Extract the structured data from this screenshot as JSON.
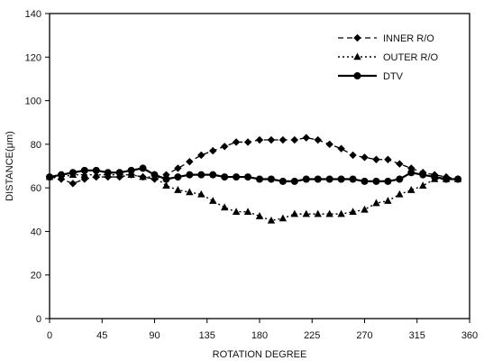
{
  "chart_data": {
    "type": "line",
    "title": "",
    "xlabel": "ROTATION DEGREE",
    "ylabel": "DISTANCE(μm)",
    "xlim": [
      0,
      360
    ],
    "ylim": [
      0,
      140
    ],
    "xticks": [
      0,
      45,
      90,
      135,
      180,
      225,
      270,
      315,
      360
    ],
    "yticks": [
      0,
      20,
      40,
      60,
      80,
      100,
      120,
      140
    ],
    "grid": false,
    "legend": "top-right",
    "x": [
      0,
      10,
      20,
      30,
      40,
      50,
      60,
      70,
      80,
      90,
      100,
      110,
      120,
      130,
      140,
      150,
      160,
      170,
      180,
      190,
      200,
      210,
      220,
      230,
      240,
      250,
      260,
      270,
      280,
      290,
      300,
      310,
      320,
      330,
      340,
      350
    ],
    "series": [
      {
        "name": "INNER R/O",
        "marker": "diamond",
        "line": "dashed",
        "values": [
          65,
          64,
          62,
          64,
          65,
          65,
          65,
          66,
          65,
          64,
          66,
          69,
          72,
          75,
          77,
          79,
          81,
          81,
          82,
          82,
          82,
          82,
          83,
          82,
          80,
          78,
          75,
          74,
          73,
          73,
          71,
          69,
          67,
          66,
          65,
          64
        ]
      },
      {
        "name": "OUTER R/O",
        "marker": "triangle",
        "line": "dotted",
        "values": [
          65,
          65,
          66,
          66,
          66,
          66,
          66,
          66,
          65,
          65,
          61,
          59,
          58,
          57,
          54,
          51,
          49,
          49,
          47,
          45,
          46,
          48,
          48,
          48,
          48,
          48,
          49,
          50,
          53,
          54,
          57,
          59,
          61,
          64,
          64,
          64
        ]
      },
      {
        "name": "DTV",
        "marker": "circle",
        "line": "solid",
        "values": [
          65,
          66,
          67,
          68,
          68,
          67,
          67,
          68,
          69,
          66,
          64,
          65,
          66,
          66,
          66,
          65,
          65,
          65,
          64,
          64,
          63,
          63,
          64,
          64,
          64,
          64,
          64,
          63,
          63,
          63,
          64,
          67,
          66,
          65,
          64,
          64
        ]
      }
    ]
  }
}
